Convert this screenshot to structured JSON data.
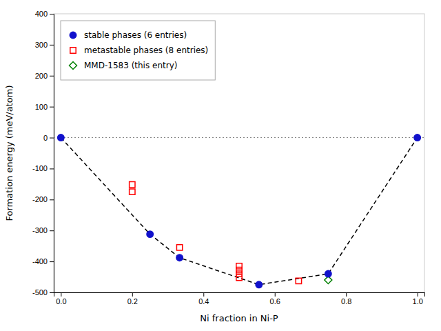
{
  "chart_data": {
    "type": "scatter",
    "xlabel": "Ni fraction in Ni-P",
    "ylabel": "Formation energy (meV/atom)",
    "xlim": [
      -0.02,
      1.02
    ],
    "ylim": [
      -500,
      400
    ],
    "xticks": [
      {
        "value": 0.0,
        "label": "0.0"
      },
      0.2,
      0.4,
      0.6,
      0.8,
      {
        "value": 1.0,
        "label": "1.0"
      }
    ],
    "yticks": [
      -500,
      -400,
      -300,
      -200,
      -100,
      0,
      100,
      200,
      300,
      400
    ],
    "grid": false,
    "legend": "upper left",
    "series": [
      {
        "type": "hline",
        "color": "gray",
        "line_style": "dotted",
        "values": [
          0
        ]
      },
      {
        "type": "line",
        "color": "black",
        "line_style": "dashed",
        "x": [
          0.0,
          0.25,
          0.333,
          0.5556,
          0.75,
          1.0
        ],
        "values": [
          0,
          -312,
          -388,
          -475,
          -440,
          0
        ]
      },
      {
        "type": "scatter",
        "name": "stable phases (6 entries)",
        "color": "#1111cc",
        "marker": "circle",
        "x": [
          0.0,
          0.25,
          0.333,
          0.5556,
          0.75,
          1.0
        ],
        "values": [
          0,
          -312,
          -388,
          -475,
          -440,
          0
        ]
      },
      {
        "type": "scatter",
        "name": "metastable phases (8 entries)",
        "color": "red",
        "marker": "square-open",
        "x": [
          0.2,
          0.2,
          0.333,
          0.5,
          0.5,
          0.5,
          0.5,
          0.667
        ],
        "values": [
          -152,
          -175,
          -355,
          -415,
          -428,
          -440,
          -452,
          -463
        ]
      },
      {
        "type": "scatter",
        "name": "MMD-1583 (this entry)",
        "color": "green",
        "marker": "diamond-open",
        "x": [
          0.75
        ],
        "values": [
          -460
        ]
      }
    ]
  }
}
